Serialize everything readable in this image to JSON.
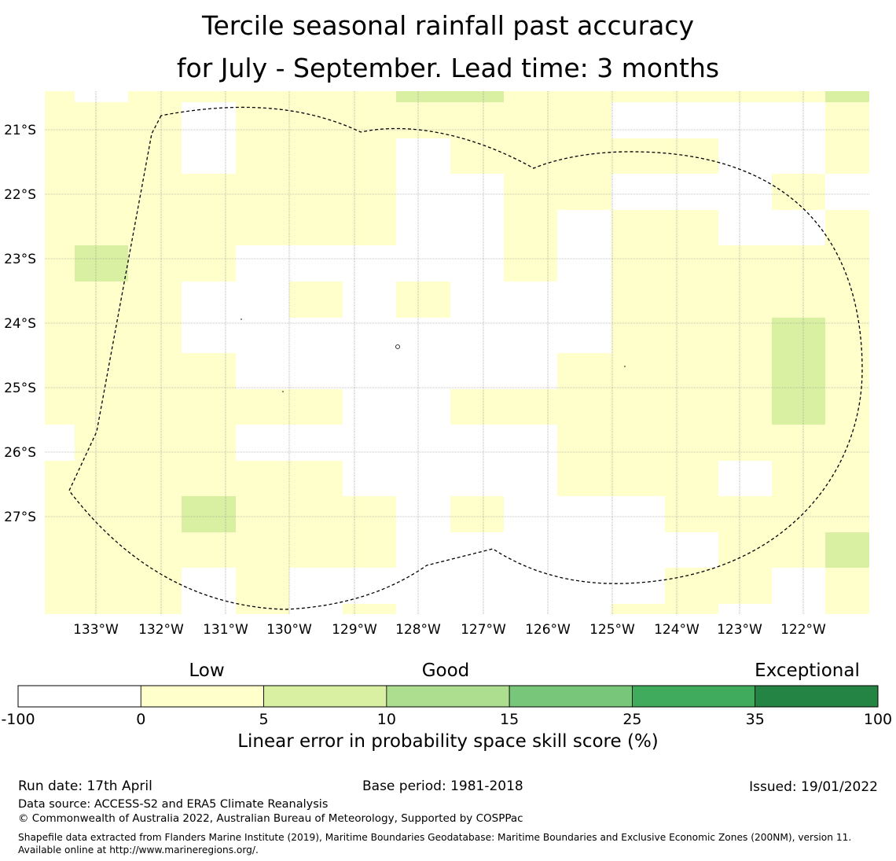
{
  "title": {
    "line1": "Tercile seasonal rainfall past accuracy",
    "line2": "for July - September. Lead time: 3 months"
  },
  "map": {
    "lon_labels": [
      "133°W",
      "132°W",
      "131°W",
      "130°W",
      "129°W",
      "128°W",
      "127°W",
      "126°W",
      "125°W",
      "124°W",
      "123°W",
      "122°W"
    ],
    "lat_labels": [
      "21°S",
      "22°S",
      "23°S",
      "24°S",
      "25°S",
      "26°S",
      "27°S"
    ],
    "cell_colors": [
      "#ffffff",
      "#ffffcc",
      "#d9f0a3"
    ],
    "grid_rows": [
      "0101111222211111111111111211",
      "1111001111111111111110000111",
      "1111001111111011111111111111",
      "1111111111111100011111110001",
      "1111111111110000000111111111",
      "1111111111111100000001111111",
      "1111111111111111111111111111",
      "1111111111111111111111111111",
      "1111111111111111111111111111",
      "1111111111111111111111111111",
      "1111111111111111111111111111",
      "1111111111111111111111111111",
      "1111111111111111111111111111",
      "1111111111111111111111111111",
      "1111111111111111111111111111"
    ],
    "boundary_style": "dashed"
  },
  "colorbar": {
    "categories": [
      "Low",
      "Good",
      "Exceptional"
    ],
    "ticks": [
      "-100",
      "0",
      "5",
      "10",
      "15",
      "25",
      "35",
      "100"
    ],
    "colors": [
      "#ffffff",
      "#ffffcc",
      "#d9f0a3",
      "#addd8e",
      "#78c679",
      "#41ab5d",
      "#238443"
    ],
    "label": "Linear error in probability space skill score (%)"
  },
  "footer": {
    "run_date": "Run date: 17th April",
    "base_period": "Base period: 1981-2018",
    "issued": "Issued: 19/01/2022",
    "data_source": "Data source: ACCESS-S2 and ERA5 Climate Reanalysis",
    "copyright": "© Commonwealth of Australia 2022, Australian Bureau of Meteorology, Supported by COSPPac",
    "shapefile": "Shapefile data extracted from Flanders Marine Institute (2019), Maritime Boundaries Geodatabase: Maritime Boundaries and Exclusive Economic Zones (200NM), version 11. Available online at http://www.marineregions.org/."
  }
}
